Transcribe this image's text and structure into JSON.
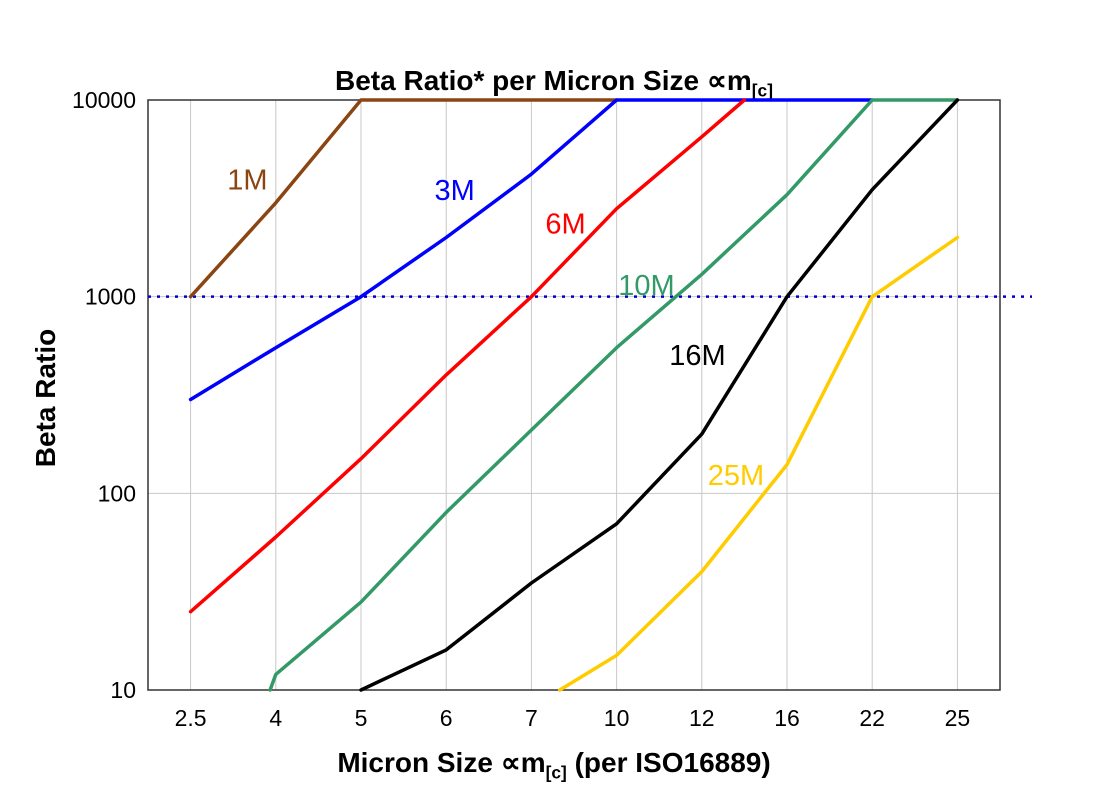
{
  "title": {
    "prefix": "Beta Ratio* per Micron Size ",
    "symbol": "∝m",
    "subscript": "[c]"
  },
  "axes": {
    "y_label": "Beta Ratio",
    "x_label_prefix": "Micron Size ",
    "x_label_symbol": "∝m",
    "x_label_subscript": "[c]",
    "x_label_suffix": " (per ISO16889)"
  },
  "chart_data": {
    "type": "line",
    "title": "Beta Ratio* per Micron Size ∝m[c]",
    "xlabel": "Micron Size ∝m[c] (per ISO16889)",
    "ylabel": "Beta Ratio",
    "x_scale": "categorical",
    "y_scale": "log",
    "grid": true,
    "ylim": [
      10,
      10000
    ],
    "x_values": [
      2.5,
      4,
      5,
      6,
      7,
      10,
      12,
      16,
      22,
      25
    ],
    "x_tick_labels": [
      "2.5",
      "4",
      "5",
      "6",
      "7",
      "10",
      "12",
      "16",
      "22",
      "25"
    ],
    "y_ticks": [
      10,
      100,
      1000,
      10000
    ],
    "y_tick_labels": [
      "10",
      "100",
      "1000",
      "10000"
    ],
    "reference_line": {
      "y": 1000,
      "color": "#0000CC",
      "style": "dotted"
    },
    "colors": {
      "grid": "#C8C8C8",
      "frame": "#333333"
    },
    "series": [
      {
        "name": "1M",
        "color": "#8B4513",
        "points": [
          [
            2.5,
            1000
          ],
          [
            4,
            3000
          ],
          [
            5,
            10000
          ],
          [
            10,
            10000
          ]
        ]
      },
      {
        "name": "3M",
        "color": "#0000FF",
        "points": [
          [
            2.5,
            300
          ],
          [
            4,
            550
          ],
          [
            5,
            1000
          ],
          [
            6,
            2000
          ],
          [
            7,
            4200
          ],
          [
            10,
            10000
          ],
          [
            22,
            10000
          ]
        ]
      },
      {
        "name": "6M",
        "color": "#FF0000",
        "points": [
          [
            2.5,
            25
          ],
          [
            4,
            60
          ],
          [
            5,
            150
          ],
          [
            6,
            400
          ],
          [
            7,
            1000
          ],
          [
            10,
            2800
          ],
          [
            12,
            6500
          ],
          [
            14,
            10000
          ]
        ]
      },
      {
        "name": "10M",
        "color": "#339966",
        "points": [
          [
            3.9,
            10
          ],
          [
            4,
            12
          ],
          [
            5,
            28
          ],
          [
            6,
            80
          ],
          [
            7,
            210
          ],
          [
            10,
            550
          ],
          [
            12,
            1300
          ],
          [
            16,
            3300
          ],
          [
            22,
            10000
          ],
          [
            25,
            10000
          ]
        ]
      },
      {
        "name": "16M",
        "color": "#000000",
        "points": [
          [
            5,
            10
          ],
          [
            6,
            16
          ],
          [
            7,
            35
          ],
          [
            10,
            70
          ],
          [
            12,
            200
          ],
          [
            16,
            1000
          ],
          [
            22,
            3500
          ],
          [
            25,
            10000
          ]
        ]
      },
      {
        "name": "25M",
        "color": "#FFCC00",
        "points": [
          [
            8,
            10
          ],
          [
            10,
            15
          ],
          [
            12,
            40
          ],
          [
            16,
            140
          ],
          [
            22,
            1000
          ],
          [
            25,
            2000
          ]
        ]
      }
    ],
    "series_labels": [
      {
        "text": "1M",
        "color": "#8B4513",
        "x": 3.5,
        "y": 3500
      },
      {
        "text": "3M",
        "color": "#0000FF",
        "x": 6.1,
        "y": 3100
      },
      {
        "text": "6M",
        "color": "#FF0000",
        "x": 8.2,
        "y": 2100
      },
      {
        "text": "10M",
        "color": "#339966",
        "x": 10.7,
        "y": 1020
      },
      {
        "text": "16M",
        "color": "#000000",
        "x": 11.9,
        "y": 450
      },
      {
        "text": "25M",
        "color": "#FFCC00",
        "x": 13.6,
        "y": 110
      }
    ]
  }
}
